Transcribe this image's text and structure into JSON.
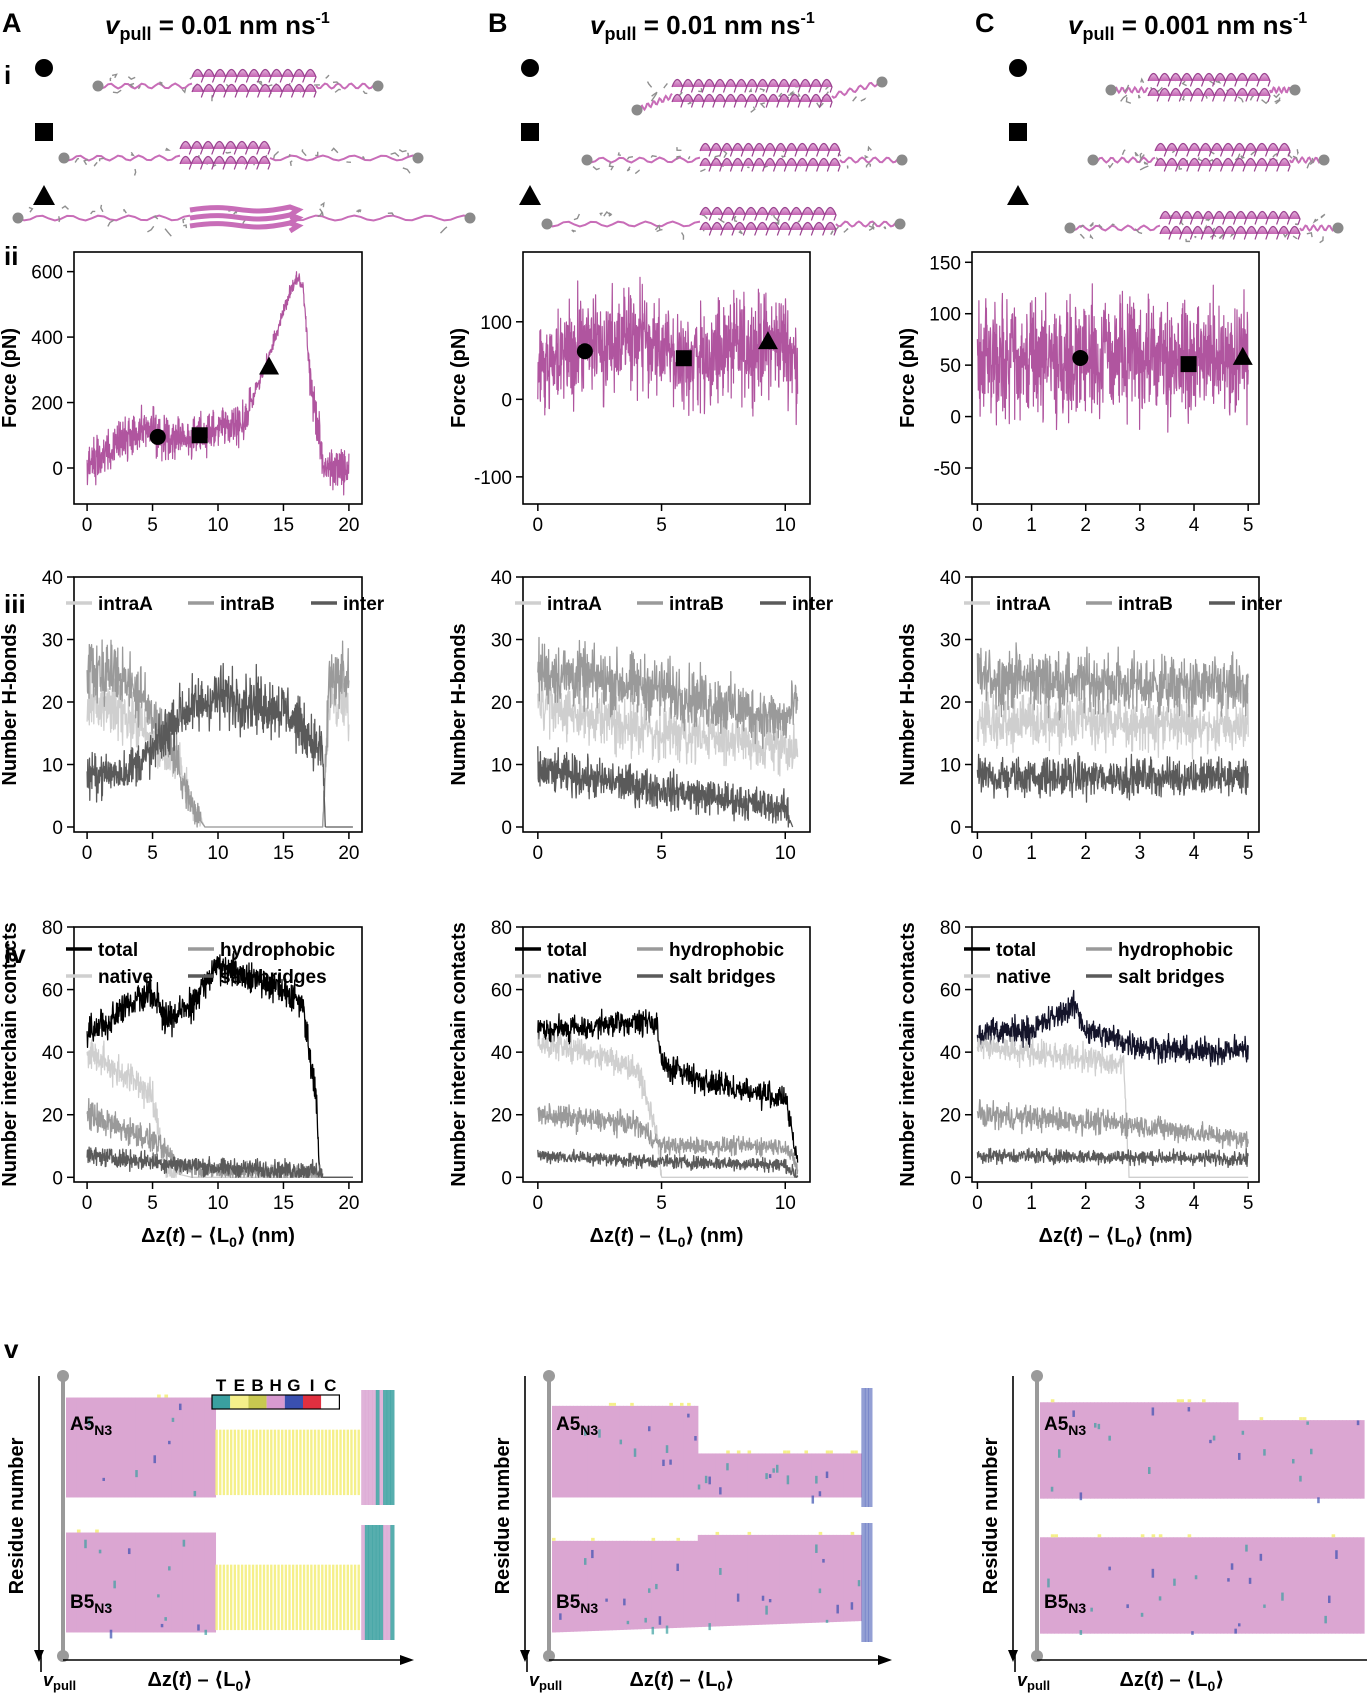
{
  "columns": [
    {
      "letter": "A",
      "vpull_main": "v",
      "vpull_sub": "pull",
      "vpull_value": " = 0.01 nm ns",
      "vpull_exp": "-1"
    },
    {
      "letter": "B",
      "vpull_main": "v",
      "vpull_sub": "pull",
      "vpull_value": " = 0.01 nm ns",
      "vpull_exp": "-1"
    },
    {
      "letter": "C",
      "vpull_main": "v",
      "vpull_sub": "pull",
      "vpull_value": " = 0.001 nm ns",
      "vpull_exp": "-1"
    }
  ],
  "row_labels": {
    "i": "i",
    "ii": "ii",
    "iii": "iii",
    "iv": "iv",
    "v": "v"
  },
  "axis_labels": {
    "force": "Force (pN)",
    "hbonds": "Number H-bonds",
    "contacts": "Number interchain contacts",
    "residue": "Residue number",
    "dz_prefix": "Δz(",
    "dz_t": "t",
    "dz_suffix": ") – ⟨L",
    "dz_sub": "0",
    "dz_unit": "⟩ (nm)",
    "dz_end": "⟩",
    "vpull_v": "v",
    "vpull_sub": "pull"
  },
  "legends": {
    "hbonds": [
      {
        "label": "intraA",
        "color": "#cfcfcf"
      },
      {
        "label": "intraB",
        "color": "#9a9a9a"
      },
      {
        "label": "inter",
        "color": "#5a5a5a"
      }
    ],
    "contacts": [
      {
        "label": "total",
        "color": "#000000"
      },
      {
        "label": "hydrophobic",
        "color": "#9a9a9a"
      },
      {
        "label": "native",
        "color": "#cfcfcf"
      },
      {
        "label": "salt bridges",
        "color": "#5a5a5a"
      }
    ]
  },
  "ss_legend": {
    "letters": [
      "T",
      "E",
      "B",
      "H",
      "G",
      "I",
      "C"
    ],
    "colors": [
      "#3aa0a0",
      "#f5f08a",
      "#c8c850",
      "#d89ad0",
      "#3a50b0",
      "#e03040",
      "#ffffff"
    ]
  },
  "chain_labels": {
    "a": "A5",
    "b": "B5",
    "sub": "N3"
  },
  "colors": {
    "magenta": "#b0559f",
    "ribbon": "#c86db8",
    "helix_fill": "#dba6d2",
    "total_c": "#14142a"
  },
  "chart_data": [
    {
      "id": "A-force",
      "type": "line",
      "ylabel": "Force (pN)",
      "xlim": [
        -1,
        21
      ],
      "ylim": [
        -110,
        660
      ],
      "xticks": [
        0,
        5,
        10,
        15,
        20
      ],
      "yticks": [
        0,
        200,
        400,
        600
      ],
      "series": [
        {
          "values_x": [
            0,
            2,
            4,
            6,
            8,
            10,
            12,
            13,
            14,
            15,
            16,
            16.5,
            17,
            17.3,
            17.6,
            18,
            20
          ],
          "values_y": [
            0,
            70,
            120,
            100,
            90,
            120,
            140,
            250,
            350,
            480,
            580,
            560,
            300,
            200,
            140,
            0,
            0
          ]
        }
      ],
      "markers": [
        {
          "shape": "circle",
          "x": 5.4,
          "y": 95
        },
        {
          "shape": "square",
          "x": 8.6,
          "y": 100
        },
        {
          "shape": "triangle",
          "x": 13.9,
          "y": 310
        }
      ]
    },
    {
      "id": "B-force",
      "type": "line",
      "ylabel": "Force (pN)",
      "xlim": [
        -0.6,
        11
      ],
      "ylim": [
        -135,
        190
      ],
      "xticks": [
        0,
        5,
        10
      ],
      "yticks": [
        -100,
        0,
        100
      ],
      "series": [
        {
          "values_x": [
            0,
            2,
            4,
            5,
            6,
            8,
            10,
            10.5
          ],
          "values_y": [
            40,
            70,
            85,
            60,
            50,
            65,
            75,
            40
          ]
        }
      ],
      "markers": [
        {
          "shape": "circle",
          "x": 1.9,
          "y": 62
        },
        {
          "shape": "square",
          "x": 5.9,
          "y": 53
        },
        {
          "shape": "triangle",
          "x": 9.3,
          "y": 75
        }
      ]
    },
    {
      "id": "C-force",
      "type": "line",
      "ylabel": "Force (pN)",
      "xlim": [
        -0.1,
        5.2
      ],
      "ylim": [
        -85,
        160
      ],
      "xticks": [
        0,
        1,
        2,
        3,
        4,
        5
      ],
      "yticks": [
        -50,
        0,
        50,
        100,
        150
      ],
      "series": [
        {
          "values_x": [
            0,
            1,
            2,
            3,
            4,
            5
          ],
          "values_y": [
            50,
            55,
            60,
            55,
            55,
            60
          ]
        }
      ],
      "markers": [
        {
          "shape": "circle",
          "x": 1.9,
          "y": 57
        },
        {
          "shape": "square",
          "x": 3.9,
          "y": 51
        },
        {
          "shape": "triangle",
          "x": 4.9,
          "y": 58
        }
      ]
    },
    {
      "id": "A-hbonds",
      "type": "line",
      "ylabel": "Number H-bonds",
      "xlim": [
        -1,
        21
      ],
      "ylim": [
        -0.8,
        40
      ],
      "xticks": [
        0,
        5,
        10,
        15,
        20
      ],
      "yticks": [
        0,
        10,
        20,
        30,
        40
      ],
      "series": [
        {
          "name": "intraA",
          "values_x": [
            0,
            3,
            5,
            7,
            8,
            9,
            18,
            18.5,
            20
          ],
          "values_y": [
            20,
            18,
            14,
            10,
            4,
            0,
            0,
            20,
            20
          ]
        },
        {
          "name": "intraB",
          "values_x": [
            0,
            3,
            5,
            7,
            8,
            9,
            18,
            18.5,
            20
          ],
          "values_y": [
            26,
            24,
            18,
            10,
            3,
            0,
            0,
            24,
            24
          ]
        },
        {
          "name": "inter",
          "values_x": [
            0,
            3,
            5,
            7,
            10,
            15,
            18,
            18.2
          ],
          "values_y": [
            8,
            9,
            12,
            18,
            21,
            19,
            12,
            0
          ]
        }
      ]
    },
    {
      "id": "B-hbonds",
      "type": "line",
      "ylabel": "Number H-bonds",
      "xlim": [
        -0.6,
        11
      ],
      "ylim": [
        -0.8,
        40
      ],
      "xticks": [
        0,
        5,
        10
      ],
      "yticks": [
        0,
        10,
        20,
        30,
        40
      ],
      "series": [
        {
          "name": "intraA",
          "values_x": [
            0,
            5,
            10,
            10.5
          ],
          "values_y": [
            20,
            15,
            13,
            12
          ]
        },
        {
          "name": "intraB",
          "values_x": [
            0,
            5,
            10,
            10.5
          ],
          "values_y": [
            25,
            22,
            17,
            20
          ]
        },
        {
          "name": "inter",
          "values_x": [
            0,
            5,
            10,
            10.3
          ],
          "values_y": [
            9,
            6,
            3,
            0
          ]
        }
      ]
    },
    {
      "id": "C-hbonds",
      "type": "line",
      "ylabel": "Number H-bonds",
      "xlim": [
        -0.1,
        5.2
      ],
      "ylim": [
        -0.8,
        40
      ],
      "xticks": [
        0,
        1,
        2,
        3,
        4,
        5
      ],
      "yticks": [
        0,
        10,
        20,
        30,
        40
      ],
      "series": [
        {
          "name": "intraA",
          "values_x": [
            0,
            5
          ],
          "values_y": [
            17,
            16
          ]
        },
        {
          "name": "intraB",
          "values_x": [
            0,
            5
          ],
          "values_y": [
            24,
            22
          ]
        },
        {
          "name": "inter",
          "values_x": [
            0,
            5
          ],
          "values_y": [
            8,
            8
          ]
        }
      ]
    },
    {
      "id": "A-contacts",
      "type": "line",
      "ylabel": "Number interchain contacts",
      "xlabel": "Δz(t) – ⟨L0⟩ (nm)",
      "xlim": [
        -1,
        21
      ],
      "ylim": [
        -1.5,
        80
      ],
      "xticks": [
        0,
        5,
        10,
        15,
        20
      ],
      "yticks": [
        0,
        20,
        40,
        60,
        80
      ],
      "series": [
        {
          "name": "total",
          "values_x": [
            0,
            2,
            4,
            5,
            6,
            8,
            10,
            12,
            15,
            16.5,
            17.5,
            17.8,
            20
          ],
          "values_y": [
            47,
            50,
            58,
            60,
            50,
            55,
            68,
            65,
            60,
            55,
            25,
            0,
            0
          ]
        },
        {
          "name": "native",
          "values_x": [
            0,
            2,
            4,
            5,
            6,
            8,
            10,
            18
          ],
          "values_y": [
            40,
            35,
            30,
            25,
            2,
            0,
            0,
            0
          ]
        },
        {
          "name": "hydrophobic",
          "values_x": [
            0,
            3,
            5,
            7,
            10,
            17.8,
            18
          ],
          "values_y": [
            20,
            15,
            12,
            4,
            2,
            1,
            0
          ]
        },
        {
          "name": "salt bridges",
          "values_x": [
            0,
            5,
            10,
            17.8,
            18
          ],
          "values_y": [
            7,
            5,
            3,
            2,
            0
          ]
        }
      ]
    },
    {
      "id": "B-contacts",
      "type": "line",
      "ylabel": "Number interchain contacts",
      "xlabel": "Δz(t) – ⟨L0⟩ (nm)",
      "xlim": [
        -0.6,
        11
      ],
      "ylim": [
        -1.5,
        80
      ],
      "xticks": [
        0,
        5,
        10
      ],
      "yticks": [
        0,
        20,
        40,
        60,
        80
      ],
      "series": [
        {
          "name": "total",
          "values_x": [
            0,
            2,
            4.8,
            5,
            7,
            10,
            10.5
          ],
          "values_y": [
            47,
            48,
            50,
            36,
            30,
            25,
            5
          ]
        },
        {
          "name": "native",
          "values_x": [
            0,
            2,
            4,
            4.8,
            5,
            10.5
          ],
          "values_y": [
            43,
            40,
            35,
            15,
            0,
            0
          ]
        },
        {
          "name": "hydrophobic",
          "values_x": [
            0,
            4,
            5,
            10,
            10.5
          ],
          "values_y": [
            20,
            17,
            10,
            10,
            3
          ]
        },
        {
          "name": "salt bridges",
          "values_x": [
            0,
            5,
            10,
            10.5
          ],
          "values_y": [
            7,
            5,
            4,
            0
          ]
        }
      ]
    },
    {
      "id": "C-contacts",
      "type": "line",
      "ylabel": "Number interchain contacts",
      "xlabel": "Δz(t) – ⟨L0⟩ (nm)",
      "xlim": [
        -0.1,
        5.2
      ],
      "ylim": [
        -1.5,
        80
      ],
      "xticks": [
        0,
        1,
        2,
        3,
        4,
        5
      ],
      "yticks": [
        0,
        20,
        40,
        60,
        80
      ],
      "series": [
        {
          "name": "total",
          "values_x": [
            0,
            1,
            1.8,
            2,
            3,
            4,
            5
          ],
          "values_y": [
            46,
            47,
            55,
            47,
            42,
            40,
            41
          ]
        },
        {
          "name": "native",
          "values_x": [
            0,
            1,
            2,
            2.7,
            2.8,
            5
          ],
          "values_y": [
            42,
            40,
            38,
            36,
            0,
            0
          ]
        },
        {
          "name": "hydrophobic",
          "values_x": [
            0,
            2.8,
            5
          ],
          "values_y": [
            20,
            17,
            12
          ]
        },
        {
          "name": "salt bridges",
          "values_x": [
            0,
            5
          ],
          "values_y": [
            7,
            6
          ]
        }
      ]
    }
  ]
}
